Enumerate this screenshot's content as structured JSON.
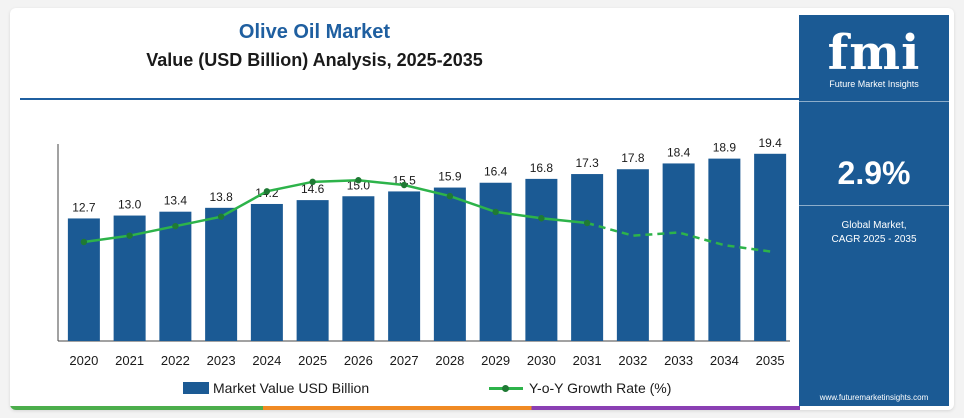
{
  "header": {
    "title": "Olive Oil Market",
    "subtitle": "Value (USD Billion) Analysis, 2025-2035"
  },
  "colors": {
    "bar": "#1b5a94",
    "line": "#2db34a",
    "marker": "#1f7a34",
    "title": "#1f5fa0",
    "sidebar": "#1b5a94"
  },
  "legend": {
    "bar_label": "Market Value USD Billion",
    "line_label": "Y-o-Y Growth Rate (%)"
  },
  "sidebar": {
    "logo_text": "fmi",
    "logo_subtitle": "Future Market Insights",
    "cagr_value": "2.9%",
    "cagr_label_line1": "Global Market,",
    "cagr_label_line2": "CAGR 2025 - 2035",
    "website": "www.futuremarketinsights.com"
  },
  "chart_data": {
    "type": "bar",
    "categories": [
      "2020",
      "2021",
      "2022",
      "2023",
      "2024",
      "2025",
      "2026",
      "2027",
      "2028",
      "2029",
      "2030",
      "2031",
      "2032",
      "2033",
      "2034",
      "2035"
    ],
    "series": [
      {
        "name": "Market Value USD Billion",
        "type": "bar",
        "values": [
          12.7,
          13.0,
          13.4,
          13.8,
          14.2,
          14.6,
          15.0,
          15.5,
          15.9,
          16.4,
          16.8,
          17.3,
          17.8,
          18.4,
          18.9,
          19.4
        ]
      },
      {
        "name": "Y-o-Y Growth Rate (%)",
        "type": "line",
        "values": [
          2.4,
          2.6,
          2.9,
          3.2,
          4.0,
          4.3,
          4.35,
          4.2,
          3.85,
          3.35,
          3.15,
          3.0,
          2.6,
          2.7,
          2.3,
          2.1
        ]
      }
    ],
    "data_labels": [
      "12.7",
      "13.0",
      "13.4",
      "13.8",
      "14.2",
      "14.6",
      "15.0",
      "15.5",
      "15.9",
      "16.4",
      "16.8",
      "17.3",
      "17.8",
      "18.4",
      "18.9",
      "19.4"
    ],
    "ylim": [
      0,
      20
    ],
    "growth_range": [
      0,
      6
    ],
    "grid": false,
    "legend_position": "bottom"
  }
}
